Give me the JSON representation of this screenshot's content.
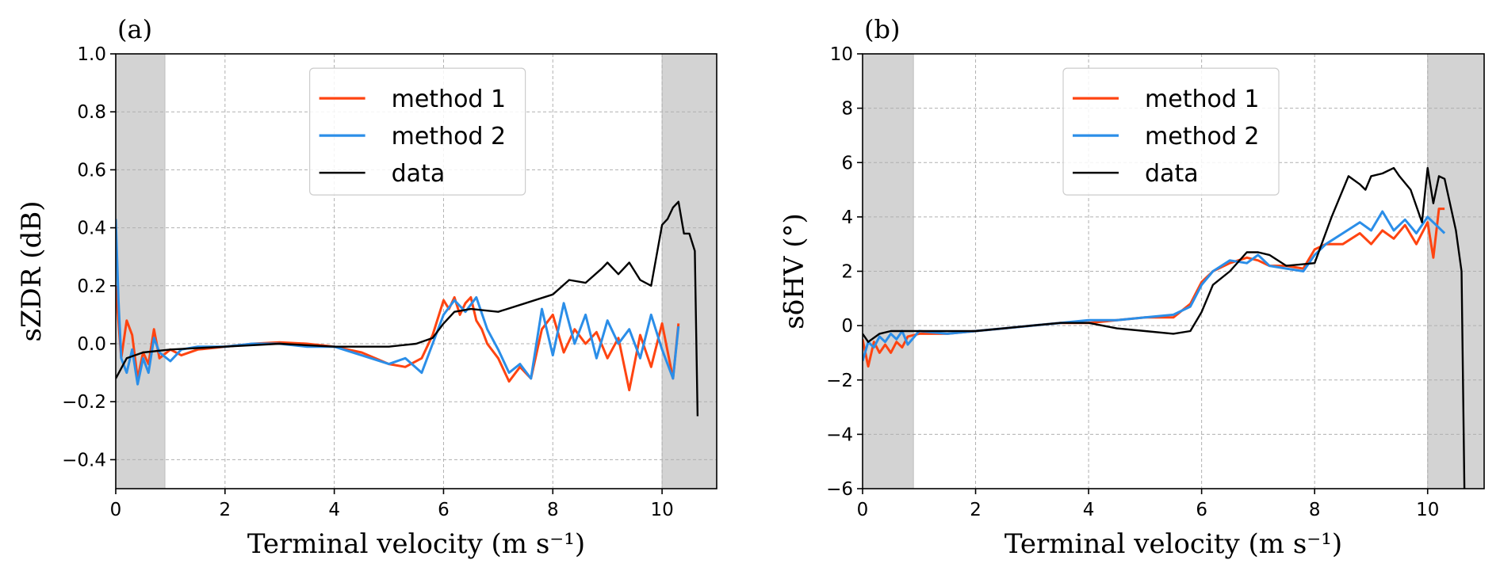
{
  "chart_data": [
    {
      "type": "line",
      "panel_label": "(a)",
      "xlabel": "Terminal velocity (m s⁻¹)",
      "ylabel": "sZDR (dB)",
      "xlim": [
        0,
        11
      ],
      "ylim": [
        -0.5,
        1.0
      ],
      "xticks": [
        0,
        2,
        4,
        6,
        8,
        10
      ],
      "yticks": [
        -0.4,
        -0.2,
        0.0,
        0.2,
        0.4,
        0.6,
        0.8,
        1.0
      ],
      "ytick_labels": [
        "−0.4",
        "−0.2",
        "0.0",
        "0.2",
        "0.4",
        "0.6",
        "0.8",
        "1.0"
      ],
      "xtick_labels": [
        "0",
        "2",
        "4",
        "6",
        "8",
        "10"
      ],
      "grid": true,
      "legend_position": "top-center",
      "shaded_ranges": [
        [
          0,
          0.9
        ],
        [
          10,
          11
        ]
      ],
      "series": [
        {
          "name": "method 1",
          "color": "#ff4411",
          "x": [
            0.0,
            0.1,
            0.2,
            0.3,
            0.4,
            0.5,
            0.6,
            0.7,
            0.8,
            1.0,
            1.2,
            1.5,
            2.0,
            2.5,
            3.0,
            3.5,
            4.0,
            4.5,
            5.0,
            5.3,
            5.6,
            5.8,
            6.0,
            6.1,
            6.2,
            6.3,
            6.4,
            6.5,
            6.6,
            6.7,
            6.8,
            7.0,
            7.2,
            7.4,
            7.6,
            7.8,
            8.0,
            8.2,
            8.4,
            8.6,
            8.8,
            9.0,
            9.2,
            9.4,
            9.6,
            9.8,
            10.0,
            10.2,
            10.3
          ],
          "y": [
            0.2,
            -0.05,
            0.08,
            0.03,
            -0.12,
            -0.03,
            -0.07,
            0.05,
            -0.05,
            -0.02,
            -0.04,
            -0.02,
            -0.01,
            0.0,
            0.005,
            0.0,
            -0.01,
            -0.03,
            -0.07,
            -0.08,
            -0.05,
            0.03,
            0.15,
            0.12,
            0.16,
            0.1,
            0.14,
            0.16,
            0.08,
            0.05,
            0.0,
            -0.05,
            -0.13,
            -0.08,
            -0.12,
            0.05,
            0.1,
            -0.03,
            0.05,
            0.0,
            0.04,
            -0.05,
            0.02,
            -0.16,
            0.03,
            -0.08,
            0.07,
            -0.12,
            0.07
          ]
        },
        {
          "name": "method 2",
          "color": "#2b8ee8",
          "x": [
            0.0,
            0.05,
            0.1,
            0.2,
            0.3,
            0.4,
            0.5,
            0.6,
            0.7,
            0.8,
            1.0,
            1.2,
            1.5,
            2.0,
            2.5,
            3.0,
            3.5,
            4.0,
            4.5,
            5.0,
            5.3,
            5.6,
            5.8,
            6.0,
            6.2,
            6.4,
            6.6,
            6.8,
            7.0,
            7.2,
            7.4,
            7.6,
            7.8,
            8.0,
            8.2,
            8.4,
            8.6,
            8.8,
            9.0,
            9.2,
            9.4,
            9.6,
            9.8,
            10.0,
            10.2,
            10.3
          ],
          "y": [
            0.43,
            0.15,
            -0.05,
            -0.1,
            -0.02,
            -0.14,
            -0.05,
            -0.1,
            0.02,
            -0.03,
            -0.06,
            -0.02,
            -0.01,
            -0.01,
            0.0,
            0.0,
            -0.01,
            -0.01,
            -0.04,
            -0.07,
            -0.05,
            -0.1,
            0.0,
            0.1,
            0.15,
            0.11,
            0.16,
            0.05,
            -0.02,
            -0.1,
            -0.07,
            -0.12,
            0.12,
            -0.04,
            0.14,
            0.0,
            0.1,
            -0.05,
            0.08,
            0.0,
            0.05,
            -0.05,
            0.1,
            -0.02,
            -0.12,
            0.06
          ]
        },
        {
          "name": "data",
          "color": "#000000",
          "x": [
            0.0,
            0.2,
            0.5,
            1.0,
            2.0,
            3.0,
            4.0,
            4.5,
            5.0,
            5.5,
            5.8,
            6.0,
            6.2,
            6.5,
            7.0,
            7.5,
            8.0,
            8.3,
            8.6,
            8.9,
            9.0,
            9.2,
            9.4,
            9.6,
            9.8,
            10.0,
            10.1,
            10.2,
            10.3,
            10.4,
            10.5,
            10.6,
            10.65
          ],
          "y": [
            -0.12,
            -0.05,
            -0.03,
            -0.02,
            -0.01,
            0.0,
            -0.01,
            -0.01,
            -0.01,
            0.0,
            0.02,
            0.07,
            0.11,
            0.12,
            0.11,
            0.14,
            0.17,
            0.22,
            0.21,
            0.26,
            0.28,
            0.24,
            0.28,
            0.22,
            0.2,
            0.41,
            0.43,
            0.47,
            0.49,
            0.38,
            0.38,
            0.32,
            -0.25
          ]
        }
      ]
    },
    {
      "type": "line",
      "panel_label": "(b)",
      "xlabel": "Terminal velocity (m s⁻¹)",
      "ylabel": "sδHV (°)",
      "xlim": [
        0,
        11
      ],
      "ylim": [
        -6,
        10
      ],
      "xticks": [
        0,
        2,
        4,
        6,
        8,
        10
      ],
      "yticks": [
        -6,
        -4,
        -2,
        0,
        2,
        4,
        6,
        8,
        10
      ],
      "ytick_labels": [
        "−6",
        "−4",
        "−2",
        "0",
        "2",
        "4",
        "6",
        "8",
        "10"
      ],
      "xtick_labels": [
        "0",
        "2",
        "4",
        "6",
        "8",
        "10"
      ],
      "grid": true,
      "legend_position": "top-center",
      "shaded_ranges": [
        [
          0,
          0.9
        ],
        [
          10,
          11
        ]
      ],
      "series": [
        {
          "name": "method 1",
          "color": "#ff4411",
          "x": [
            0.0,
            0.1,
            0.2,
            0.3,
            0.4,
            0.5,
            0.6,
            0.7,
            0.8,
            1.0,
            1.5,
            2.0,
            2.5,
            3.0,
            3.5,
            4.0,
            4.5,
            5.0,
            5.5,
            5.8,
            6.0,
            6.2,
            6.5,
            6.8,
            7.0,
            7.2,
            7.5,
            7.8,
            8.0,
            8.2,
            8.5,
            8.8,
            9.0,
            9.2,
            9.4,
            9.6,
            9.8,
            10.0,
            10.1,
            10.2,
            10.3
          ],
          "y": [
            -0.5,
            -1.5,
            -0.6,
            -1.0,
            -0.7,
            -1.0,
            -0.6,
            -0.8,
            -0.4,
            -0.3,
            -0.3,
            -0.2,
            -0.1,
            0.0,
            0.1,
            0.1,
            0.2,
            0.3,
            0.3,
            0.8,
            1.6,
            2.0,
            2.3,
            2.5,
            2.4,
            2.2,
            2.2,
            2.1,
            2.8,
            3.0,
            3.0,
            3.4,
            3.0,
            3.5,
            3.2,
            3.7,
            3.0,
            3.8,
            2.5,
            4.3,
            4.3
          ]
        },
        {
          "name": "method 2",
          "color": "#2b8ee8",
          "x": [
            0.0,
            0.1,
            0.2,
            0.3,
            0.4,
            0.5,
            0.6,
            0.7,
            0.8,
            1.0,
            1.5,
            2.0,
            2.5,
            3.0,
            3.5,
            4.0,
            4.5,
            5.0,
            5.5,
            5.8,
            6.0,
            6.2,
            6.5,
            6.8,
            7.0,
            7.2,
            7.5,
            7.8,
            8.0,
            8.2,
            8.5,
            8.8,
            9.0,
            9.2,
            9.4,
            9.6,
            9.8,
            10.0,
            10.2,
            10.3
          ],
          "y": [
            -1.3,
            -0.6,
            -0.8,
            -0.4,
            -0.6,
            -0.3,
            -0.5,
            -0.2,
            -0.7,
            -0.2,
            -0.3,
            -0.2,
            -0.1,
            0.0,
            0.1,
            0.2,
            0.2,
            0.3,
            0.4,
            0.7,
            1.5,
            2.0,
            2.4,
            2.3,
            2.6,
            2.2,
            2.1,
            2.0,
            2.6,
            3.0,
            3.4,
            3.8,
            3.5,
            4.2,
            3.5,
            3.9,
            3.4,
            4.0,
            3.6,
            3.4
          ]
        },
        {
          "name": "data",
          "color": "#000000",
          "x": [
            0.0,
            0.1,
            0.3,
            0.5,
            1.0,
            1.5,
            2.0,
            2.5,
            3.0,
            3.5,
            4.0,
            4.5,
            5.0,
            5.5,
            5.8,
            6.0,
            6.2,
            6.5,
            6.8,
            7.0,
            7.2,
            7.5,
            8.0,
            8.3,
            8.6,
            8.8,
            8.9,
            9.0,
            9.2,
            9.4,
            9.5,
            9.7,
            9.9,
            10.0,
            10.1,
            10.2,
            10.3,
            10.5,
            10.6,
            10.65
          ],
          "y": [
            -0.3,
            -0.6,
            -0.3,
            -0.2,
            -0.2,
            -0.2,
            -0.2,
            -0.1,
            0.0,
            0.1,
            0.1,
            -0.1,
            -0.2,
            -0.3,
            -0.2,
            0.5,
            1.5,
            2.0,
            2.7,
            2.7,
            2.6,
            2.2,
            2.3,
            4.0,
            5.5,
            5.2,
            5.0,
            5.5,
            5.6,
            5.8,
            5.5,
            5.0,
            3.8,
            5.8,
            4.5,
            5.5,
            5.4,
            3.5,
            2.0,
            -6.0
          ]
        }
      ]
    }
  ]
}
